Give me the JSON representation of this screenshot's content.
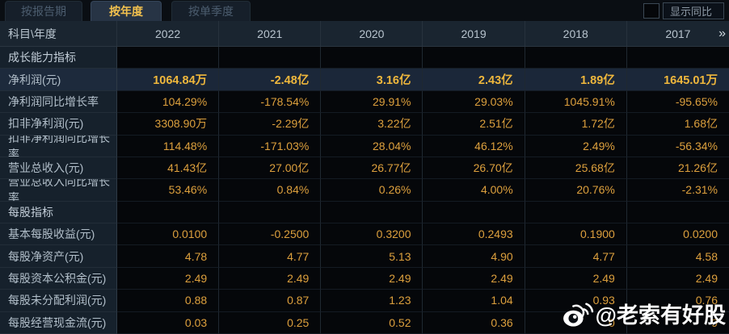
{
  "tabs": [
    {
      "label": "按报告期",
      "active": false
    },
    {
      "label": "按年度",
      "active": true
    },
    {
      "label": "按单季度",
      "active": false
    }
  ],
  "toolbar": {
    "show_yoy_label": "显示同比",
    "checkbox_checked": false
  },
  "table": {
    "corner_label": "科目\\年度",
    "years": [
      "2022",
      "2021",
      "2020",
      "2019",
      "2018",
      "2017"
    ],
    "more_icon": "»",
    "rows": [
      {
        "type": "section",
        "label": "成长能力指标"
      },
      {
        "type": "data",
        "label": "净利润(元)",
        "highlight": true,
        "values": [
          "1064.84万",
          "-2.48亿",
          "3.16亿",
          "2.43亿",
          "1.89亿",
          "1645.01万"
        ]
      },
      {
        "type": "data",
        "label": "净利润同比增长率",
        "values": [
          "104.29%",
          "-178.54%",
          "29.91%",
          "29.03%",
          "1045.91%",
          "-95.65%"
        ]
      },
      {
        "type": "data",
        "label": "扣非净利润(元)",
        "values": [
          "3308.90万",
          "-2.29亿",
          "3.22亿",
          "2.51亿",
          "1.72亿",
          "1.68亿"
        ]
      },
      {
        "type": "data",
        "label": "扣非净利润同比增长率",
        "values": [
          "114.48%",
          "-171.03%",
          "28.04%",
          "46.12%",
          "2.49%",
          "-56.34%"
        ]
      },
      {
        "type": "data",
        "label": "营业总收入(元)",
        "values": [
          "41.43亿",
          "27.00亿",
          "26.77亿",
          "26.70亿",
          "25.68亿",
          "21.26亿"
        ]
      },
      {
        "type": "data",
        "label": "营业总收入同比增长率",
        "values": [
          "53.46%",
          "0.84%",
          "0.26%",
          "4.00%",
          "20.76%",
          "-2.31%"
        ]
      },
      {
        "type": "section",
        "label": "每股指标"
      },
      {
        "type": "data",
        "label": "基本每股收益(元)",
        "values": [
          "0.0100",
          "-0.2500",
          "0.3200",
          "0.2493",
          "0.1900",
          "0.0200"
        ]
      },
      {
        "type": "data",
        "label": "每股净资产(元)",
        "values": [
          "4.78",
          "4.77",
          "5.13",
          "4.90",
          "4.77",
          "4.58"
        ]
      },
      {
        "type": "data",
        "label": "每股资本公积金(元)",
        "values": [
          "2.49",
          "2.49",
          "2.49",
          "2.49",
          "2.49",
          "2.49"
        ]
      },
      {
        "type": "data",
        "label": "每股未分配利润(元)",
        "values": [
          "0.88",
          "0.87",
          "1.23",
          "1.04",
          "0.93",
          "0.76"
        ]
      },
      {
        "type": "data",
        "label": "每股经营现金流(元)",
        "values": [
          "0.03",
          "0.25",
          "0.52",
          "0.36",
          "0",
          "9"
        ]
      }
    ]
  },
  "watermark": {
    "handle": "@老索有好股",
    "icon": "weibo"
  },
  "colors": {
    "accent_gold": "#f2c14e",
    "value_gold": "#dda03d",
    "highlight_row_bg": "#1b2739",
    "header_bg": "#1a2530",
    "label_col_bg": "#16212c",
    "cell_bg": "#05070a"
  }
}
